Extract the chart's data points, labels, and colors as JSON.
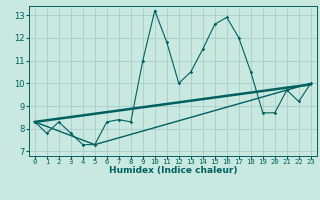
{
  "title": "",
  "xlabel": "Humidex (Indice chaleur)",
  "ylabel": "",
  "bg_color": "#c8e8e0",
  "grid_color": "#a8cccc",
  "line_color": "#006060",
  "xlim": [
    -0.5,
    23.5
  ],
  "ylim": [
    6.8,
    13.4
  ],
  "xticks": [
    0,
    1,
    2,
    3,
    4,
    5,
    6,
    7,
    8,
    9,
    10,
    11,
    12,
    13,
    14,
    15,
    16,
    17,
    18,
    19,
    20,
    21,
    22,
    23
  ],
  "yticks": [
    7,
    8,
    9,
    10,
    11,
    12,
    13
  ],
  "series1_x": [
    0,
    1,
    2,
    3,
    4,
    5,
    6,
    7,
    8,
    9,
    10,
    11,
    12,
    13,
    14,
    15,
    16,
    17,
    18,
    19,
    20,
    21,
    22,
    23
  ],
  "series1_y": [
    8.3,
    7.8,
    8.3,
    7.8,
    7.3,
    7.3,
    8.3,
    8.4,
    8.3,
    11.0,
    13.2,
    11.8,
    10.0,
    10.5,
    11.5,
    12.6,
    12.9,
    12.0,
    10.5,
    8.7,
    8.7,
    9.7,
    9.2,
    10.0
  ],
  "series2_x": [
    0,
    23
  ],
  "series2_y": [
    8.3,
    9.95
  ],
  "series3_x": [
    0,
    5,
    23
  ],
  "series3_y": [
    8.3,
    7.3,
    10.0
  ]
}
